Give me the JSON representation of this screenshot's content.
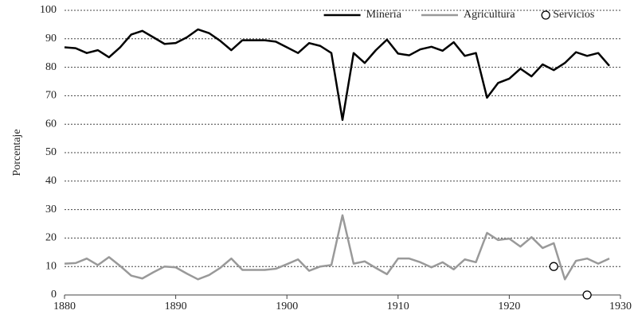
{
  "chart_data": {
    "type": "line",
    "y_label": "Porcentaje",
    "x": [
      1880,
      1881,
      1882,
      1883,
      1884,
      1885,
      1886,
      1887,
      1888,
      1889,
      1890,
      1891,
      1892,
      1893,
      1894,
      1895,
      1896,
      1897,
      1898,
      1899,
      1900,
      1901,
      1902,
      1903,
      1904,
      1905,
      1906,
      1907,
      1908,
      1909,
      1910,
      1911,
      1912,
      1913,
      1914,
      1915,
      1916,
      1917,
      1918,
      1919,
      1920,
      1921,
      1922,
      1923,
      1924,
      1925,
      1926,
      1927,
      1928,
      1929
    ],
    "series": [
      {
        "name": "Minería",
        "color": "#000000",
        "style": "line",
        "values": [
          87,
          86.7,
          85,
          86,
          83.5,
          87,
          91.5,
          92.8,
          90.5,
          88.2,
          88.5,
          90.5,
          93.3,
          92,
          89.3,
          86,
          89.5,
          89.5,
          89.5,
          89,
          87,
          85,
          88.5,
          87.5,
          85,
          61.5,
          85,
          81.5,
          86,
          89.7,
          84.8,
          84.2,
          86.3,
          87.2,
          85.8,
          88.8,
          84,
          85,
          69.3,
          74.5,
          76,
          79.5,
          76.8,
          81,
          79,
          81.5,
          85.3,
          84,
          85,
          80.5
        ]
      },
      {
        "name": "Agricultura",
        "color": "#999999",
        "style": "line",
        "values": [
          11,
          11.2,
          12.8,
          10.5,
          13.3,
          10.2,
          6.8,
          5.8,
          8,
          10,
          9.7,
          7.5,
          5.5,
          7,
          9.5,
          12.8,
          8.8,
          8.8,
          8.8,
          9.2,
          10.8,
          12.5,
          8.5,
          10,
          10.5,
          28,
          11,
          11.8,
          9.5,
          7.3,
          12.8,
          12.8,
          11.5,
          9.7,
          11.5,
          9,
          12.5,
          11.5,
          21.8,
          19.3,
          19.8,
          17,
          20.3,
          16.5,
          18.2,
          5.5,
          12,
          12.8,
          11,
          12.8
        ]
      },
      {
        "name": "Servicios",
        "color": "#000000",
        "style": "marker",
        "values": [
          null,
          null,
          null,
          null,
          null,
          null,
          null,
          null,
          null,
          null,
          null,
          null,
          null,
          null,
          null,
          null,
          null,
          null,
          null,
          null,
          null,
          null,
          null,
          null,
          null,
          null,
          null,
          null,
          null,
          null,
          null,
          null,
          null,
          null,
          null,
          null,
          null,
          null,
          null,
          null,
          null,
          null,
          null,
          null,
          10,
          null,
          null,
          0,
          null,
          null
        ]
      }
    ],
    "xlim": [
      1880,
      1930
    ],
    "xticks": [
      1880,
      1890,
      1900,
      1910,
      1920,
      1930
    ],
    "ylim": [
      0,
      100
    ],
    "yticks": [
      0,
      10,
      20,
      30,
      40,
      50,
      60,
      70,
      80,
      90,
      100
    ],
    "grid": true,
    "legend": "top-right"
  }
}
